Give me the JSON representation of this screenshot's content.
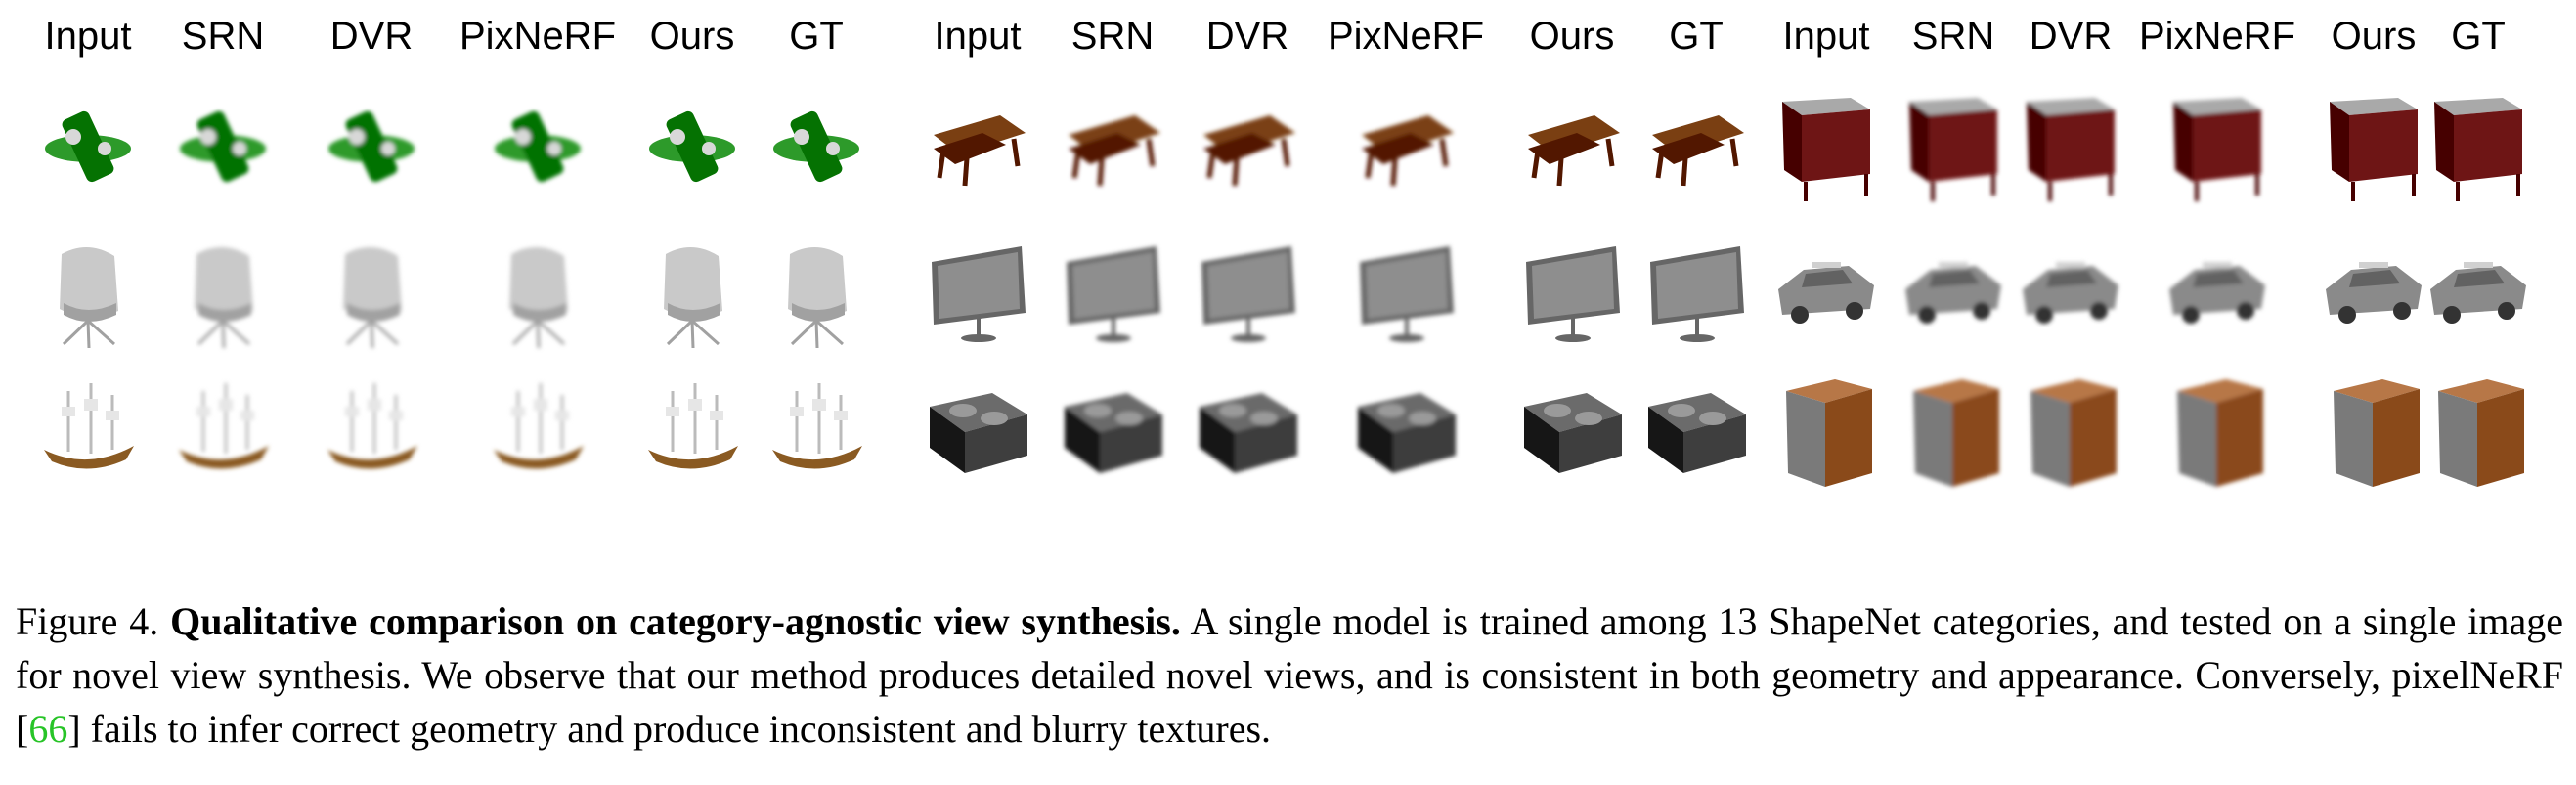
{
  "figure": {
    "column_headers": [
      "Input",
      "SRN",
      "DVR",
      "PixNeRF",
      "Ours",
      "GT"
    ],
    "panels": [
      {
        "name": "left",
        "rows": [
          {
            "object": "green-airplane-icon",
            "color": "#2d9a2a"
          },
          {
            "object": "gray-chair-icon",
            "color": "#c9c9c9"
          },
          {
            "object": "brown-ship-icon",
            "color": "#8a5a22"
          }
        ]
      },
      {
        "name": "middle",
        "rows": [
          {
            "object": "brown-bench-icon",
            "color": "#7a3f12"
          },
          {
            "object": "gray-monitor-icon",
            "color": "#8e8e8e"
          },
          {
            "object": "dark-box-icon",
            "color": "#3e3e3e"
          }
        ]
      },
      {
        "name": "right",
        "rows": [
          {
            "object": "red-cabinet-icon",
            "color": "#6e1515"
          },
          {
            "object": "gray-car-icon",
            "color": "#8a8a8a"
          },
          {
            "object": "wooden-cabinet-icon",
            "color": "#8a4a1a"
          }
        ]
      }
    ]
  },
  "caption": {
    "label": "Figure 4.",
    "title": "Qualitative comparison on category-agnostic view synthesis.",
    "text_1": "A single model is trained among 13 ShapeNet categories, and tested on a single image for novel view synthesis. We observe that our method produces detailed novel views, and is consistent in both geometry and appearance. Conversely, pixelNeRF [",
    "citation": "66",
    "text_2": "] fails to infer correct geometry and produce inconsistent and blurry textures."
  }
}
